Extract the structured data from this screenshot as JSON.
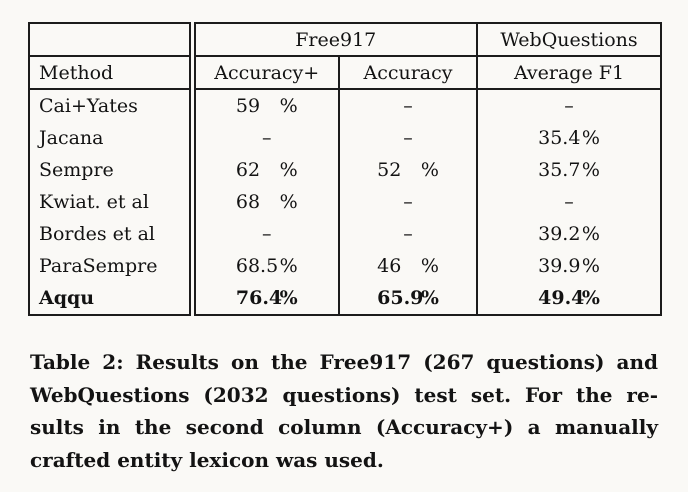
{
  "table": {
    "header": {
      "corner": "",
      "group_free917": "Free917",
      "group_webquestions": "WebQuestions",
      "method": "Method",
      "col_accuracy_plus": "Accuracy+",
      "col_accuracy": "Accuracy",
      "col_average_f1": "Average F1"
    },
    "rows": [
      {
        "method": "Cai+Yates",
        "bold": false,
        "acc_plus": {
          "num": "59",
          "unit": "%"
        },
        "acc": {
          "dash": "–"
        },
        "f1": {
          "dash": "–"
        }
      },
      {
        "method": "Jacana",
        "bold": false,
        "acc_plus": {
          "dash": "–"
        },
        "acc": {
          "dash": "–"
        },
        "f1": {
          "num": "35.4",
          "unit": "%"
        }
      },
      {
        "method": "Sempre",
        "bold": false,
        "acc_plus": {
          "num": "62",
          "unit": "%"
        },
        "acc": {
          "num": "52",
          "unit": "%"
        },
        "f1": {
          "num": "35.7",
          "unit": "%"
        }
      },
      {
        "method": "Kwiat. et al",
        "bold": false,
        "acc_plus": {
          "num": "68",
          "unit": "%"
        },
        "acc": {
          "dash": "–"
        },
        "f1": {
          "dash": "–"
        }
      },
      {
        "method": "Bordes et al",
        "bold": false,
        "acc_plus": {
          "dash": "–"
        },
        "acc": {
          "dash": "–"
        },
        "f1": {
          "num": "39.2",
          "unit": "%"
        }
      },
      {
        "method": "ParaSempre",
        "bold": false,
        "acc_plus": {
          "num": "68.5",
          "unit": "%"
        },
        "acc": {
          "num": "46",
          "unit": "%"
        },
        "f1": {
          "num": "39.9",
          "unit": "%"
        }
      },
      {
        "method": "Aqqu",
        "bold": true,
        "acc_plus": {
          "num": "76.4",
          "unit": "%"
        },
        "acc": {
          "num": "65.9",
          "unit": "%"
        },
        "f1": {
          "num": "49.4",
          "unit": "%"
        }
      }
    ]
  },
  "caption": {
    "lines": [
      "Table 2: Results on the Free917 (267 questions) and",
      "WebQuestions (2032 questions) test set. For the re-",
      "sults in the second column (Accuracy+) a manually",
      "crafted entity lexicon was used."
    ],
    "full_text": "Table 2: Results on the Free917 (267 questions) and WebQuestions (2032 questions) test set. For the results in the second column (Accuracy+) a manually crafted entity lexicon was used."
  }
}
